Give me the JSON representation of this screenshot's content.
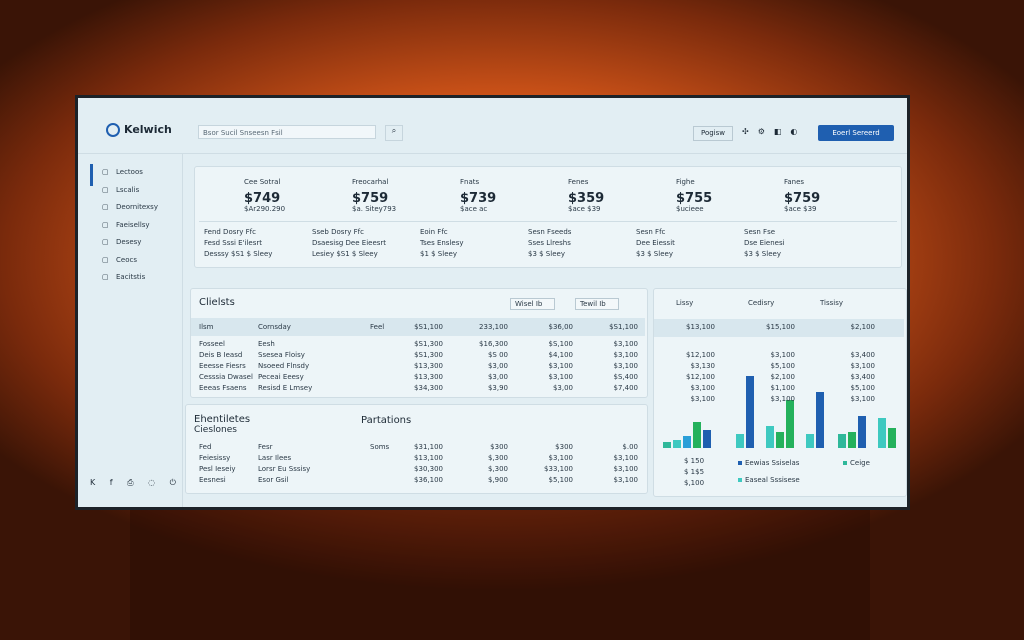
{
  "header": {
    "brand": "Kelwich",
    "search": "Bsor Sucil Snseesn Fsil",
    "button": "Pogisw",
    "action": "Eoerl Sereerd"
  },
  "sidebar": [
    "Lectoos",
    "Lscalis",
    "Deornitexsy",
    "Faeisellsy",
    "Desesy",
    "Ceocs",
    "Eacitstis"
  ],
  "kpis": [
    {
      "label": "Cee Sotral",
      "value": "$749",
      "sub": "$Ar290.290",
      "details": [
        "Fend  Dosry Ffc",
        "Fesd  Sssi E'ilesrt",
        "Desssy  $S1 $ Sleey"
      ]
    },
    {
      "label": "Freocarhal",
      "value": "$759",
      "sub": "$a. Sitey793",
      "details": [
        "Sseb  Dosry Ffc",
        "Dsaesisg  Dee Eieesrt",
        "Lesiey  $S1 $ Sleey"
      ]
    },
    {
      "label": "Fnats",
      "value": "$739",
      "sub": "$ace ac",
      "details": [
        "Eoin Ffc",
        "Tses Enslesy",
        "$1 $ Sleey"
      ]
    },
    {
      "label": "Fenes",
      "value": "$359",
      "sub": "$ace $39",
      "details": [
        "Sesn Fseeds",
        "Sses Llreshs",
        "$3 $ Sleey"
      ]
    },
    {
      "label": "Fighe",
      "value": "$755",
      "sub": "$ucieee",
      "details": [
        "Sesn Ffc",
        "Dee Eiessit",
        "$3 $ Sleey"
      ]
    },
    {
      "label": "Fanes",
      "value": "$759",
      "sub": "$ace $39",
      "details": [
        "Sesn Fse",
        "Dse Eienesi",
        "$3 $ Sleey"
      ]
    }
  ],
  "table": {
    "title": "Clielsts",
    "filters": [
      "Wisel Ib",
      "Tewil Ib"
    ],
    "header": [
      "Ilsm",
      "Cornsday",
      "Feel",
      "$S1,100",
      "233,100",
      "$36,00",
      "$S1,100"
    ],
    "rows": [
      [
        "Fosseel",
        "Eesh",
        "$S1,300",
        "$16,300",
        "$S,100",
        "$3,100"
      ],
      [
        "Deis B Ieasd",
        "Ssesea Floisy",
        "$S1,300",
        "$S 00",
        "$4,100",
        "$3,100"
      ],
      [
        "Eeesse Fiesrs",
        "Nsoeed Flnsdy",
        "$13,300",
        "$3,00",
        "$3,100",
        "$3,100"
      ],
      [
        "Cesssia Dwasel",
        "Peceai Eeesy",
        "$13,300",
        "$3,00",
        "$3,100",
        "$S,400"
      ],
      [
        "Eeeas Fsaens",
        "Resisd E Lmsey",
        "$34,300",
        "$3,90",
        "$3,00",
        "$7,400"
      ]
    ]
  },
  "side_panel": {
    "filters": [
      "Lissy",
      "Cedisry",
      "Tissisy"
    ],
    "rows": [
      [
        "$13,100",
        "$15,100",
        "$2,100"
      ],
      [
        "$12,100",
        "$3,100",
        "$3,400"
      ],
      [
        "$3,130",
        "$5,100",
        "$3,100"
      ],
      [
        "$12,100",
        "$2,100",
        "$3,400"
      ],
      [
        "$3,100",
        "$1,100",
        "$5,100"
      ],
      [
        "$3,100",
        "$3,100",
        "$3,100"
      ]
    ],
    "notes": [
      "$ 150",
      "$ 1$5",
      "$,100"
    ],
    "legend": [
      "Eewias Ssiselas",
      "Ceige",
      "Easeal Sssisese"
    ]
  },
  "bottom": {
    "title": "Ehentiletes",
    "subtitle": "Cieslones",
    "title2": "Partations",
    "header": [
      "Fed",
      "Fesr",
      "Soms",
      "$31,100",
      "$300",
      "$300",
      "$.00"
    ],
    "rows": [
      [
        "Feiesissy",
        "Lasr Ilees",
        "$13,100",
        "$,300",
        "$3,100",
        "$3,100"
      ],
      [
        "Pesl Ieseiy",
        "Lorsr Eu Sssisy",
        "$30,300",
        "$,300",
        "$33,100",
        "$3,100"
      ],
      [
        "Eesnesi",
        "Esor Gsil",
        "$36,100",
        "$,900",
        "$5,100",
        "$3,100"
      ]
    ]
  }
}
